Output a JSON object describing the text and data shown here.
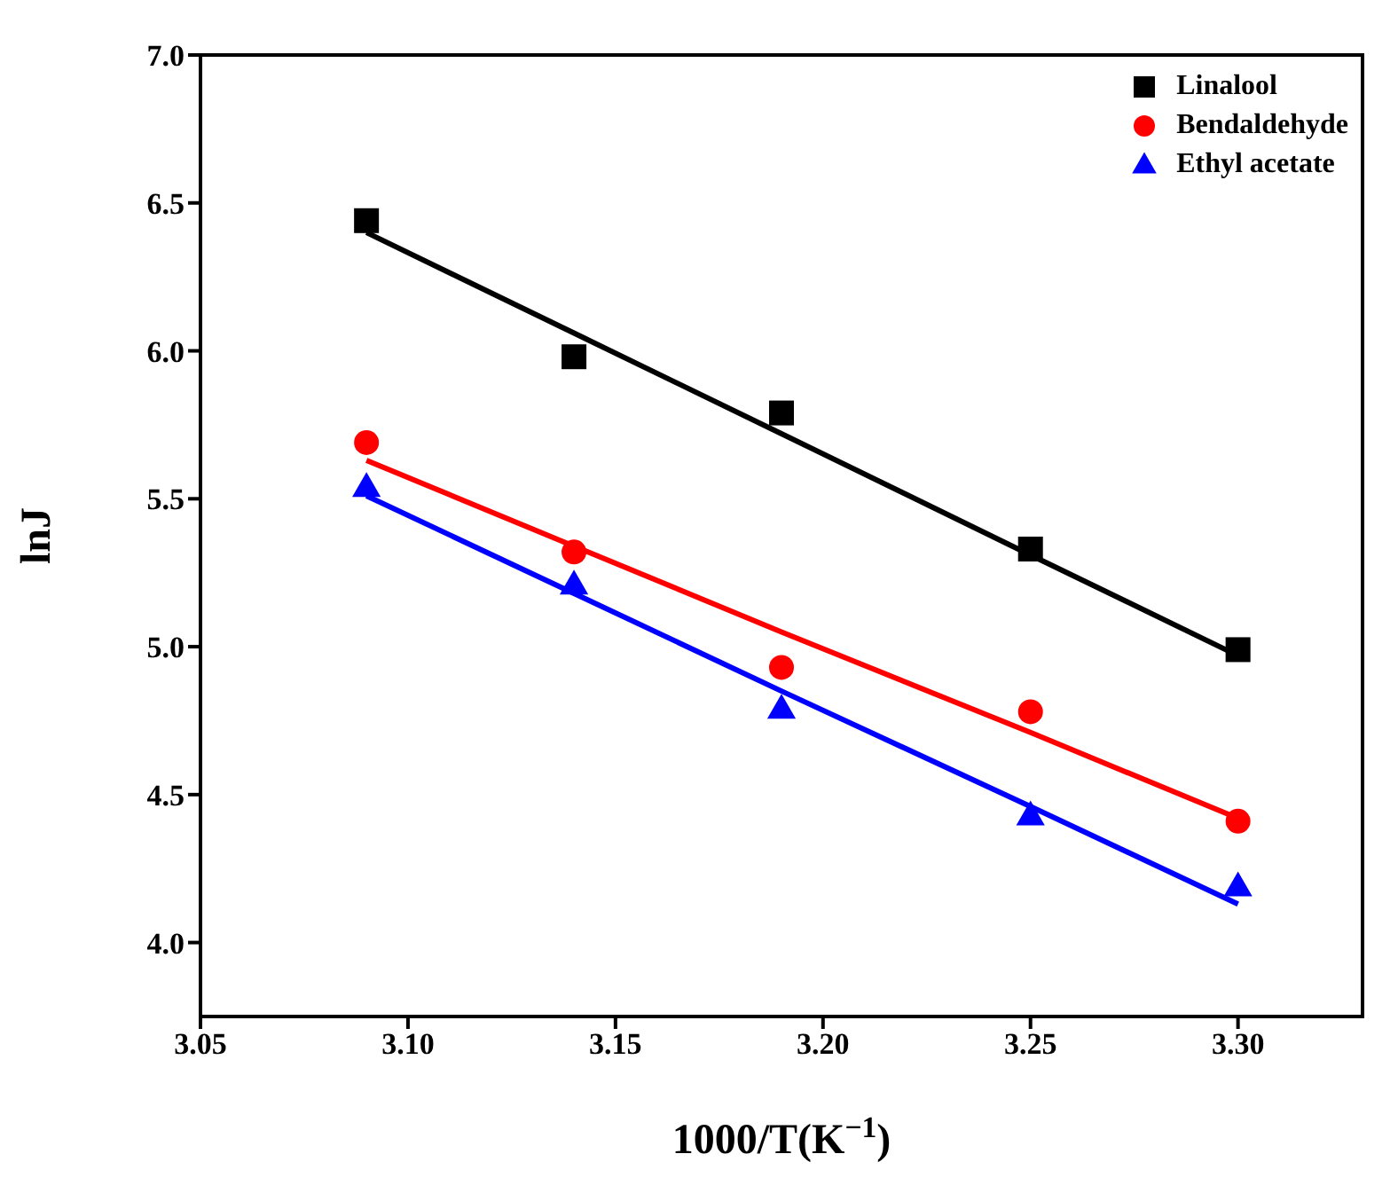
{
  "chart_data": {
    "type": "scatter",
    "xlabel": "1000/T(K$^{−1}$)",
    "ylabel": "lnJ",
    "xlim": [
      3.05,
      3.33
    ],
    "xticks": [
      {
        "value": 3.05,
        "label": "3.05"
      },
      {
        "value": 3.1,
        "label": "3.10"
      },
      {
        "value": 3.15,
        "label": "3.15"
      },
      {
        "value": 3.2,
        "label": "3.20"
      },
      {
        "value": 3.25,
        "label": "3.25"
      },
      {
        "value": 3.3,
        "label": "3.30"
      }
    ],
    "ylim": [
      3.75,
      7.0
    ],
    "yticks": [
      {
        "value": 4,
        "label": "4.0"
      },
      {
        "value": 4.5,
        "label": "4.5"
      },
      {
        "value": 5,
        "label": "5.0"
      },
      {
        "value": 5.5,
        "label": "5.5"
      },
      {
        "value": 6,
        "label": "6.0"
      },
      {
        "value": 6.5,
        "label": "6.5"
      },
      {
        "value": 7,
        "label": "7.0"
      }
    ],
    "x": [
      3.09,
      3.14,
      3.19,
      3.25,
      3.3
    ],
    "legend": "top right",
    "series": [
      {
        "name": "Linalool",
        "color": "#000000",
        "marker": "square",
        "values": [
          6.44,
          5.98,
          5.79,
          5.33,
          4.99
        ]
      },
      {
        "name": "Bendaldehyde",
        "color": "#ff0000",
        "marker": "circle",
        "values": [
          5.69,
          5.32,
          4.93,
          4.78,
          4.41
        ]
      },
      {
        "name": "Ethyl acetate",
        "color": "#0000ff",
        "marker": "triangle",
        "values": [
          5.54,
          5.21,
          4.79,
          4.43,
          4.19
        ]
      },
      {
        "type": "line",
        "color": "#000000",
        "line_style": "solid",
        "values": [
          6.4,
          6.06,
          5.72,
          5.31,
          4.97
        ]
      },
      {
        "type": "line",
        "color": "#ff0000",
        "line_style": "solid",
        "values": [
          5.63,
          5.34,
          5.05,
          4.71,
          4.42
        ]
      },
      {
        "type": "line",
        "color": "#0000ff",
        "line_style": "solid",
        "values": [
          5.51,
          5.18,
          4.85,
          4.46,
          4.13
        ]
      }
    ]
  }
}
